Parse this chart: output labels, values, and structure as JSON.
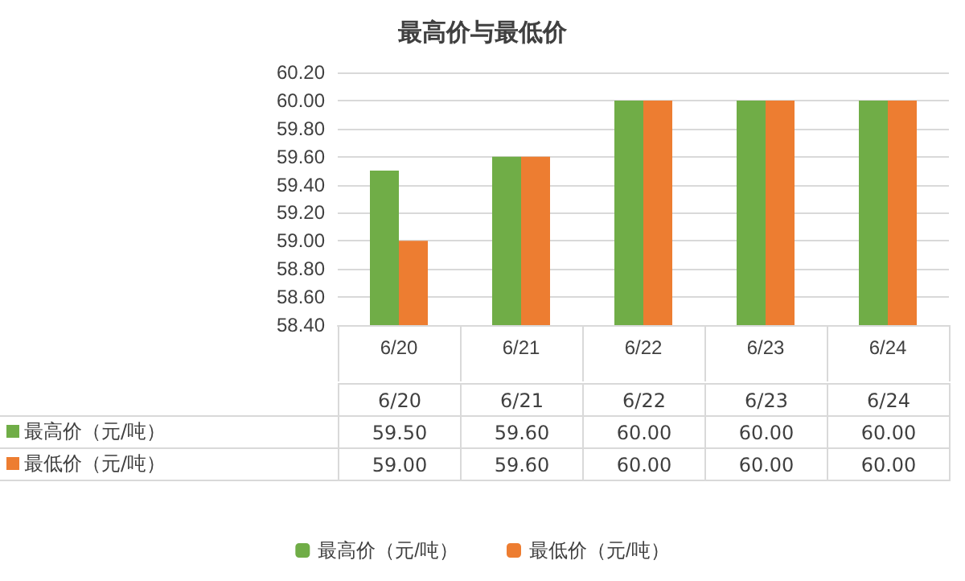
{
  "chart_data": {
    "type": "bar",
    "title": "最高价与最低价",
    "categories": [
      "6/20",
      "6/21",
      "6/22",
      "6/23",
      "6/24"
    ],
    "series": [
      {
        "name": "最高价（元/吨）",
        "color": "#70ad47",
        "values": [
          59.5,
          59.6,
          60,
          60,
          60
        ],
        "value_labels": [
          "59.50",
          "59.60",
          "60.00",
          "60.00",
          "60.00"
        ]
      },
      {
        "name": "最低价（元/吨）",
        "color": "#ed7d31",
        "values": [
          59,
          59.6,
          60,
          60,
          60
        ],
        "value_labels": [
          "59.00",
          "59.60",
          "60.00",
          "60.00",
          "60.00"
        ]
      }
    ],
    "ylim": [
      58.4,
      60.2
    ],
    "yticks": [
      {
        "value": 58.4,
        "label": "58.40"
      },
      {
        "value": 58.6,
        "label": "58.60"
      },
      {
        "value": 58.8,
        "label": "58.80"
      },
      {
        "value": 59,
        "label": "59.00"
      },
      {
        "value": 59.2,
        "label": "59.20"
      },
      {
        "value": 59.4,
        "label": "59.40"
      },
      {
        "value": 59.6,
        "label": "59.60"
      },
      {
        "value": 59.8,
        "label": "59.80"
      },
      {
        "value": 60,
        "label": "60.00"
      },
      {
        "value": 60.2,
        "label": "60.20"
      }
    ],
    "grid": "y",
    "legend": "bottom"
  }
}
